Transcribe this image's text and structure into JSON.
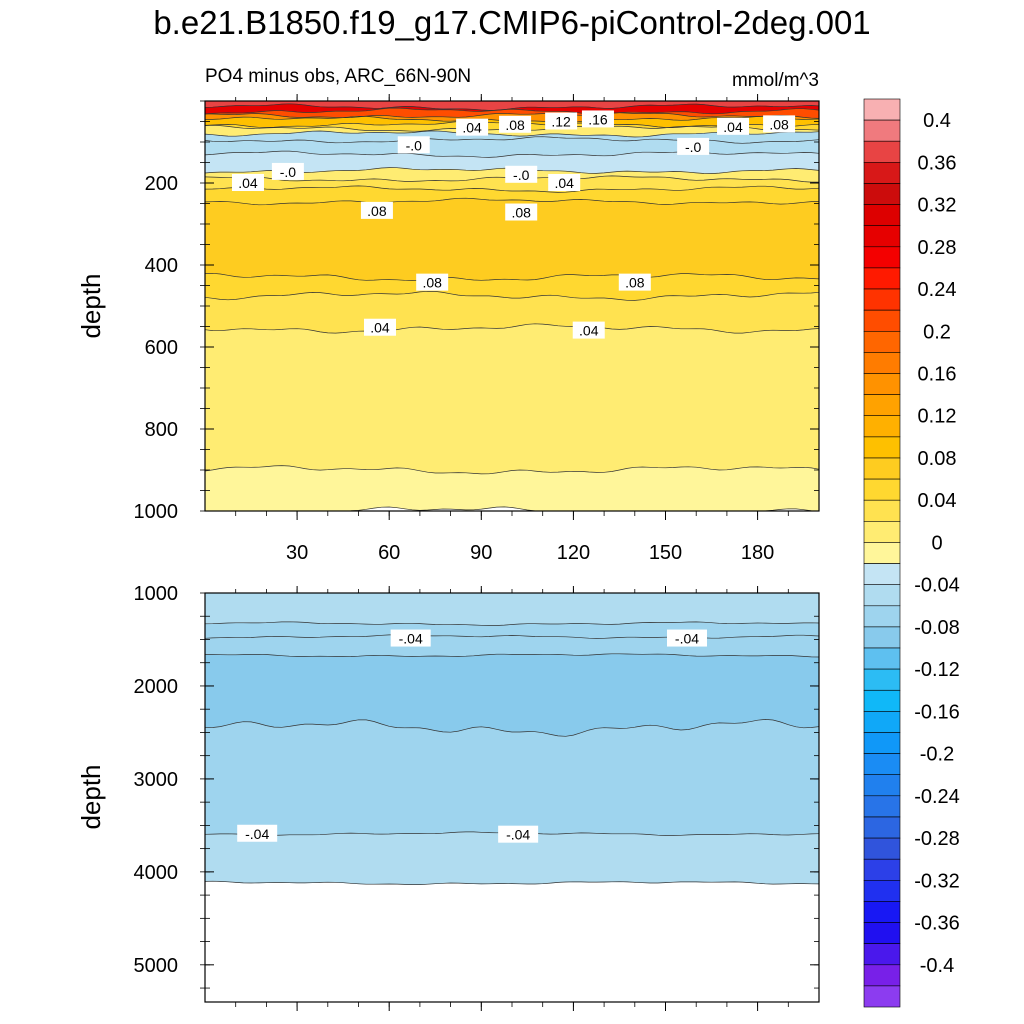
{
  "title": "b.e21.B1850.f19_g17.CMIP6-piControl-2deg.001",
  "chart_data": [
    {
      "type": "contour",
      "panel": "upper",
      "left_label": "PO4 minus obs, ARC_66N-90N",
      "right_label": "mmol/m^3",
      "ylabel": "depth",
      "xlabel": "",
      "xlim": [
        0,
        200
      ],
      "ylim": [
        1000,
        0
      ],
      "x_ticks": [
        30,
        60,
        90,
        120,
        150,
        180
      ],
      "y_ticks": [
        200,
        400,
        600,
        800,
        1000
      ],
      "layers": [
        {
          "top": 0,
          "bottom": 15,
          "value": 0.38
        },
        {
          "top": 15,
          "bottom": 25,
          "value": 0.3
        },
        {
          "top": 25,
          "bottom": 35,
          "value": 0.22
        },
        {
          "top": 35,
          "bottom": 45,
          "value": 0.16
        },
        {
          "top": 45,
          "bottom": 57,
          "value": 0.1
        },
        {
          "top": 57,
          "bottom": 67,
          "value": 0.06
        },
        {
          "top": 67,
          "bottom": 80,
          "value": 0.02
        },
        {
          "top": 80,
          "bottom": 95,
          "value": -0.02
        },
        {
          "top": 95,
          "bottom": 130,
          "value": -0.03
        },
        {
          "top": 130,
          "bottom": 170,
          "value": -0.01
        },
        {
          "top": 170,
          "bottom": 190,
          "value": 0.02
        },
        {
          "top": 190,
          "bottom": 215,
          "value": 0.04
        },
        {
          "top": 215,
          "bottom": 245,
          "value": 0.06
        },
        {
          "top": 245,
          "bottom": 430,
          "value": 0.09
        },
        {
          "top": 430,
          "bottom": 475,
          "value": 0.07
        },
        {
          "top": 475,
          "bottom": 555,
          "value": 0.05
        },
        {
          "top": 555,
          "bottom": 900,
          "value": 0.03
        },
        {
          "top": 900,
          "bottom": 1000,
          "value": 0.01
        }
      ],
      "contour_labels": [
        {
          "x": 87,
          "depth": 65,
          "text": ".04"
        },
        {
          "x": 101,
          "depth": 58,
          "text": ".08"
        },
        {
          "x": 116,
          "depth": 50,
          "text": ".12"
        },
        {
          "x": 128,
          "depth": 45,
          "text": ".16"
        },
        {
          "x": 172,
          "depth": 63,
          "text": ".04"
        },
        {
          "x": 187,
          "depth": 57,
          "text": ".08"
        },
        {
          "x": 68,
          "depth": 108,
          "text": "-.0"
        },
        {
          "x": 159,
          "depth": 112,
          "text": "-.0"
        },
        {
          "x": 27,
          "depth": 173,
          "text": "-.0"
        },
        {
          "x": 14,
          "depth": 200,
          "text": ".04"
        },
        {
          "x": 103,
          "depth": 180,
          "text": "-.0"
        },
        {
          "x": 117,
          "depth": 200,
          "text": ".04"
        },
        {
          "x": 56,
          "depth": 268,
          "text": ".08"
        },
        {
          "x": 103,
          "depth": 272,
          "text": ".08"
        },
        {
          "x": 74,
          "depth": 443,
          "text": ".08"
        },
        {
          "x": 140,
          "depth": 443,
          "text": ".08"
        },
        {
          "x": 57,
          "depth": 553,
          "text": ".04"
        },
        {
          "x": 125,
          "depth": 560,
          "text": ".04"
        }
      ]
    },
    {
      "type": "contour",
      "panel": "lower",
      "ylabel": "depth",
      "xlim": [
        0,
        200
      ],
      "ylim": [
        5400,
        1000
      ],
      "y_ticks": [
        1000,
        2000,
        3000,
        4000,
        5000
      ],
      "layers": [
        {
          "top": 1000,
          "bottom": 1330,
          "value": -0.02
        },
        {
          "top": 1330,
          "bottom": 1470,
          "value": -0.04
        },
        {
          "top": 1470,
          "bottom": 1670,
          "value": -0.05
        },
        {
          "top": 1670,
          "bottom": 2450,
          "value": -0.07
        },
        {
          "top": 2450,
          "bottom": 3590,
          "value": -0.05
        },
        {
          "top": 3590,
          "bottom": 4120,
          "value": -0.03
        }
      ],
      "contour_labels": [
        {
          "x": 67,
          "depth": 1490,
          "text": "-.04"
        },
        {
          "x": 157,
          "depth": 1490,
          "text": "-.04"
        },
        {
          "x": 17,
          "depth": 3590,
          "text": "-.04"
        },
        {
          "x": 102,
          "depth": 3600,
          "text": "-.04"
        }
      ]
    }
  ],
  "colorbar": {
    "labels": [
      "0.4",
      "0.36",
      "0.32",
      "0.28",
      "0.24",
      "0.2",
      "0.16",
      "0.12",
      "0.08",
      "0.04",
      "0",
      "-0.04",
      "-0.08",
      "-0.12",
      "-0.16",
      "-0.2",
      "-0.24",
      "-0.28",
      "-0.32",
      "-0.36",
      "-0.4"
    ],
    "colors": [
      "#f8b0b2",
      "#f07a7e",
      "#e84444",
      "#d81818",
      "#cc0c0c",
      "#dd0000",
      "#e60000",
      "#f40000",
      "#ff1a00",
      "#ff3300",
      "#ff4d00",
      "#ff6600",
      "#ff7c00",
      "#ff9200",
      "#ffa200",
      "#ffb000",
      "#fec000",
      "#fecc20",
      "#ffd830",
      "#ffe250",
      "#ffec72",
      "#fff69a",
      "#c4e4f4",
      "#b0dcf0",
      "#9ed4ee",
      "#88caec",
      "#5ec0f0",
      "#2cbcf4",
      "#10b8f8",
      "#10a8f8",
      "#1098f8",
      "#1a8cf4",
      "#2080ee",
      "#2874e8",
      "#2c66e2",
      "#3054dc",
      "#2c40e8",
      "#2030f0",
      "#1818f4",
      "#2010f0",
      "#4a18ec",
      "#7820e8",
      "#8c3cf0"
    ]
  }
}
